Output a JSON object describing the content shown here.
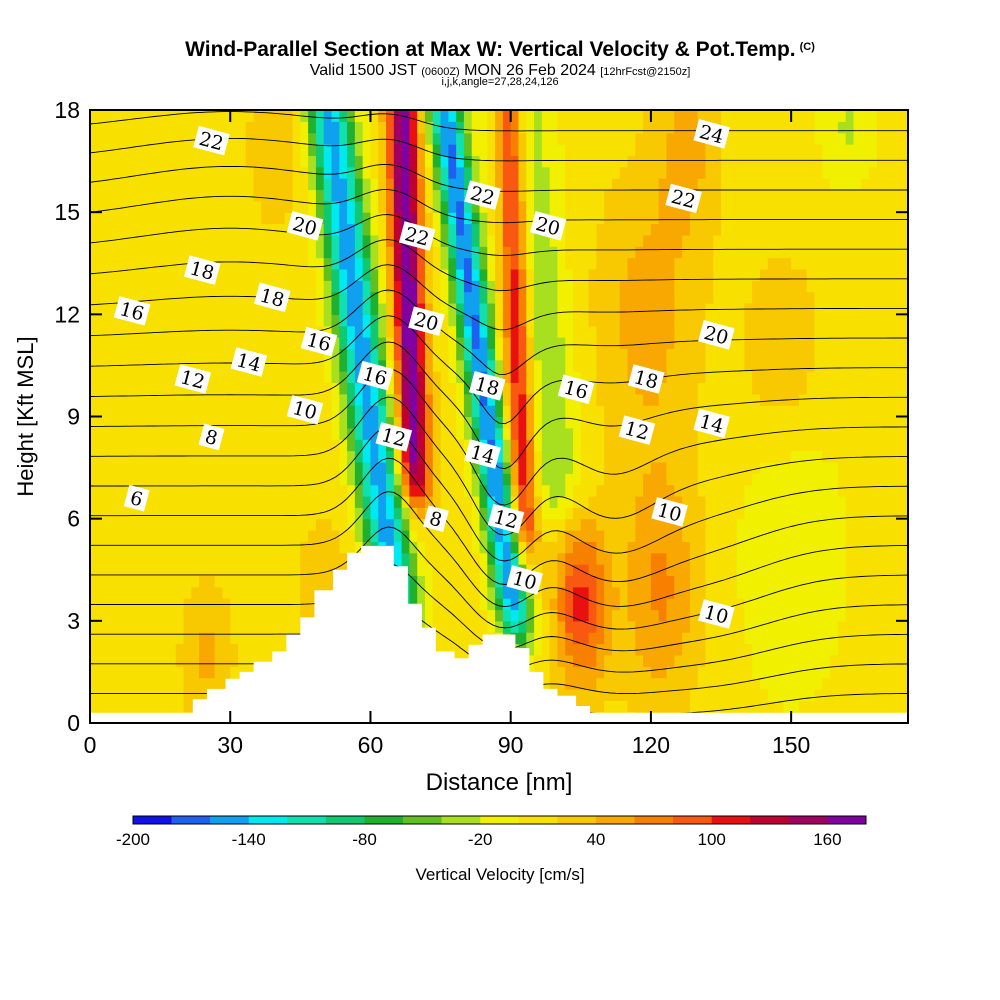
{
  "header": {
    "title": "Wind-Parallel Section at Max W: Vertical Velocity & Pot.Temp.",
    "title_units": "(C)",
    "valid_prefix": "Valid 1500 JST",
    "valid_utc": "(0600Z)",
    "valid_date": "MON 26 Feb 2024",
    "forecast_note": "[12hrFcst@2150z]",
    "grid_info": "i,j,k,angle=27,28,24,126"
  },
  "chart_data": {
    "type": "heatmap",
    "xlabel": "Distance [nm]",
    "ylabel": "Height [Kft MSL]",
    "xlim": [
      0,
      175
    ],
    "ylim": [
      0,
      18
    ],
    "x_ticks": [
      0,
      30,
      60,
      90,
      120,
      150
    ],
    "y_ticks": [
      0,
      3,
      6,
      9,
      12,
      15,
      18
    ],
    "grid": false,
    "colorbar": {
      "label": "Vertical Velocity [cm/s]",
      "levels": [
        -200,
        -180,
        -160,
        -140,
        -120,
        -100,
        -80,
        -60,
        -40,
        -20,
        0,
        20,
        40,
        60,
        80,
        100,
        120,
        140,
        160,
        180
      ],
      "tick_labels": [
        "-200",
        "-140",
        "-80",
        "-20",
        "40",
        "100",
        "160"
      ],
      "colors": [
        "#1010e8",
        "#2060f0",
        "#10a0f0",
        "#00e8f0",
        "#10e0b0",
        "#10c870",
        "#20b030",
        "#60c020",
        "#a8e020",
        "#f0f000",
        "#f8e000",
        "#f8c800",
        "#f8a800",
        "#f88000",
        "#f85810",
        "#e81010",
        "#c00030",
        "#a00060",
        "#8000a0"
      ]
    },
    "terrain_profile": {
      "x": [
        0,
        19,
        22,
        25,
        29,
        32,
        35,
        39,
        42,
        45,
        48,
        52,
        55,
        58,
        62,
        65,
        68,
        71,
        74,
        78,
        81,
        84,
        88,
        91,
        94,
        97,
        100,
        104,
        107,
        111,
        175
      ],
      "height": [
        0.3,
        0.3,
        0.7,
        1.0,
        1.3,
        1.5,
        1.8,
        2.1,
        2.6,
        3.1,
        3.9,
        4.5,
        5.0,
        5.2,
        5.2,
        4.6,
        3.5,
        2.8,
        2.1,
        1.9,
        2.3,
        2.6,
        2.6,
        2.2,
        1.5,
        1.0,
        0.8,
        0.5,
        0.3,
        0.3,
        0.3
      ]
    },
    "vertical_velocity_features": [
      {
        "x_center": 62,
        "height_range": [
          3,
          18
        ],
        "peak": -160,
        "note": "downdraft band west of crest"
      },
      {
        "x_center": 70,
        "height_range": [
          7,
          18
        ],
        "peak": 160,
        "note": "updraft band"
      },
      {
        "x_center": 86,
        "height_range": [
          3,
          18
        ],
        "peak": -180,
        "note": "downdraft band"
      },
      {
        "x_center": 92,
        "height_range": [
          5,
          18
        ],
        "peak": 120,
        "note": "updraft band"
      },
      {
        "x_center": 104,
        "height_range": [
          1,
          6
        ],
        "peak": 100,
        "note": "low-level updraft"
      },
      {
        "x_center": 120,
        "height_range": [
          1,
          7
        ],
        "peak": 60,
        "note": "broad weak updraft"
      }
    ],
    "potential_temperature_contours": {
      "units": "C",
      "interval": 1,
      "labels": [
        {
          "text": "22",
          "x": 26,
          "y": 17.1
        },
        {
          "text": "20",
          "x": 46,
          "y": 14.6
        },
        {
          "text": "18",
          "x": 24,
          "y": 13.3
        },
        {
          "text": "18",
          "x": 39,
          "y": 12.5
        },
        {
          "text": "16",
          "x": 9,
          "y": 12.1
        },
        {
          "text": "16",
          "x": 49,
          "y": 11.2
        },
        {
          "text": "14",
          "x": 34,
          "y": 10.6
        },
        {
          "text": "12",
          "x": 22,
          "y": 10.1
        },
        {
          "text": "10",
          "x": 46,
          "y": 9.2
        },
        {
          "text": "8",
          "x": 26,
          "y": 8.4
        },
        {
          "text": "6",
          "x": 10,
          "y": 6.6
        },
        {
          "text": "22",
          "x": 70,
          "y": 14.3
        },
        {
          "text": "20",
          "x": 72,
          "y": 11.8
        },
        {
          "text": "16",
          "x": 61,
          "y": 10.2
        },
        {
          "text": "12",
          "x": 65,
          "y": 8.4
        },
        {
          "text": "8",
          "x": 74,
          "y": 6.0
        },
        {
          "text": "22",
          "x": 84,
          "y": 15.5
        },
        {
          "text": "20",
          "x": 98,
          "y": 14.6
        },
        {
          "text": "18",
          "x": 85,
          "y": 9.9
        },
        {
          "text": "14",
          "x": 84,
          "y": 7.9
        },
        {
          "text": "12",
          "x": 89,
          "y": 6.0
        },
        {
          "text": "10",
          "x": 93,
          "y": 4.2
        },
        {
          "text": "16",
          "x": 104,
          "y": 9.8
        },
        {
          "text": "18",
          "x": 119,
          "y": 10.1
        },
        {
          "text": "12",
          "x": 117,
          "y": 8.6
        },
        {
          "text": "14",
          "x": 133,
          "y": 8.8
        },
        {
          "text": "20",
          "x": 134,
          "y": 11.4
        },
        {
          "text": "22",
          "x": 127,
          "y": 15.4
        },
        {
          "text": "24",
          "x": 133,
          "y": 17.3
        },
        {
          "text": "10",
          "x": 124,
          "y": 6.2
        },
        {
          "text": "10",
          "x": 134,
          "y": 3.2
        }
      ]
    }
  }
}
